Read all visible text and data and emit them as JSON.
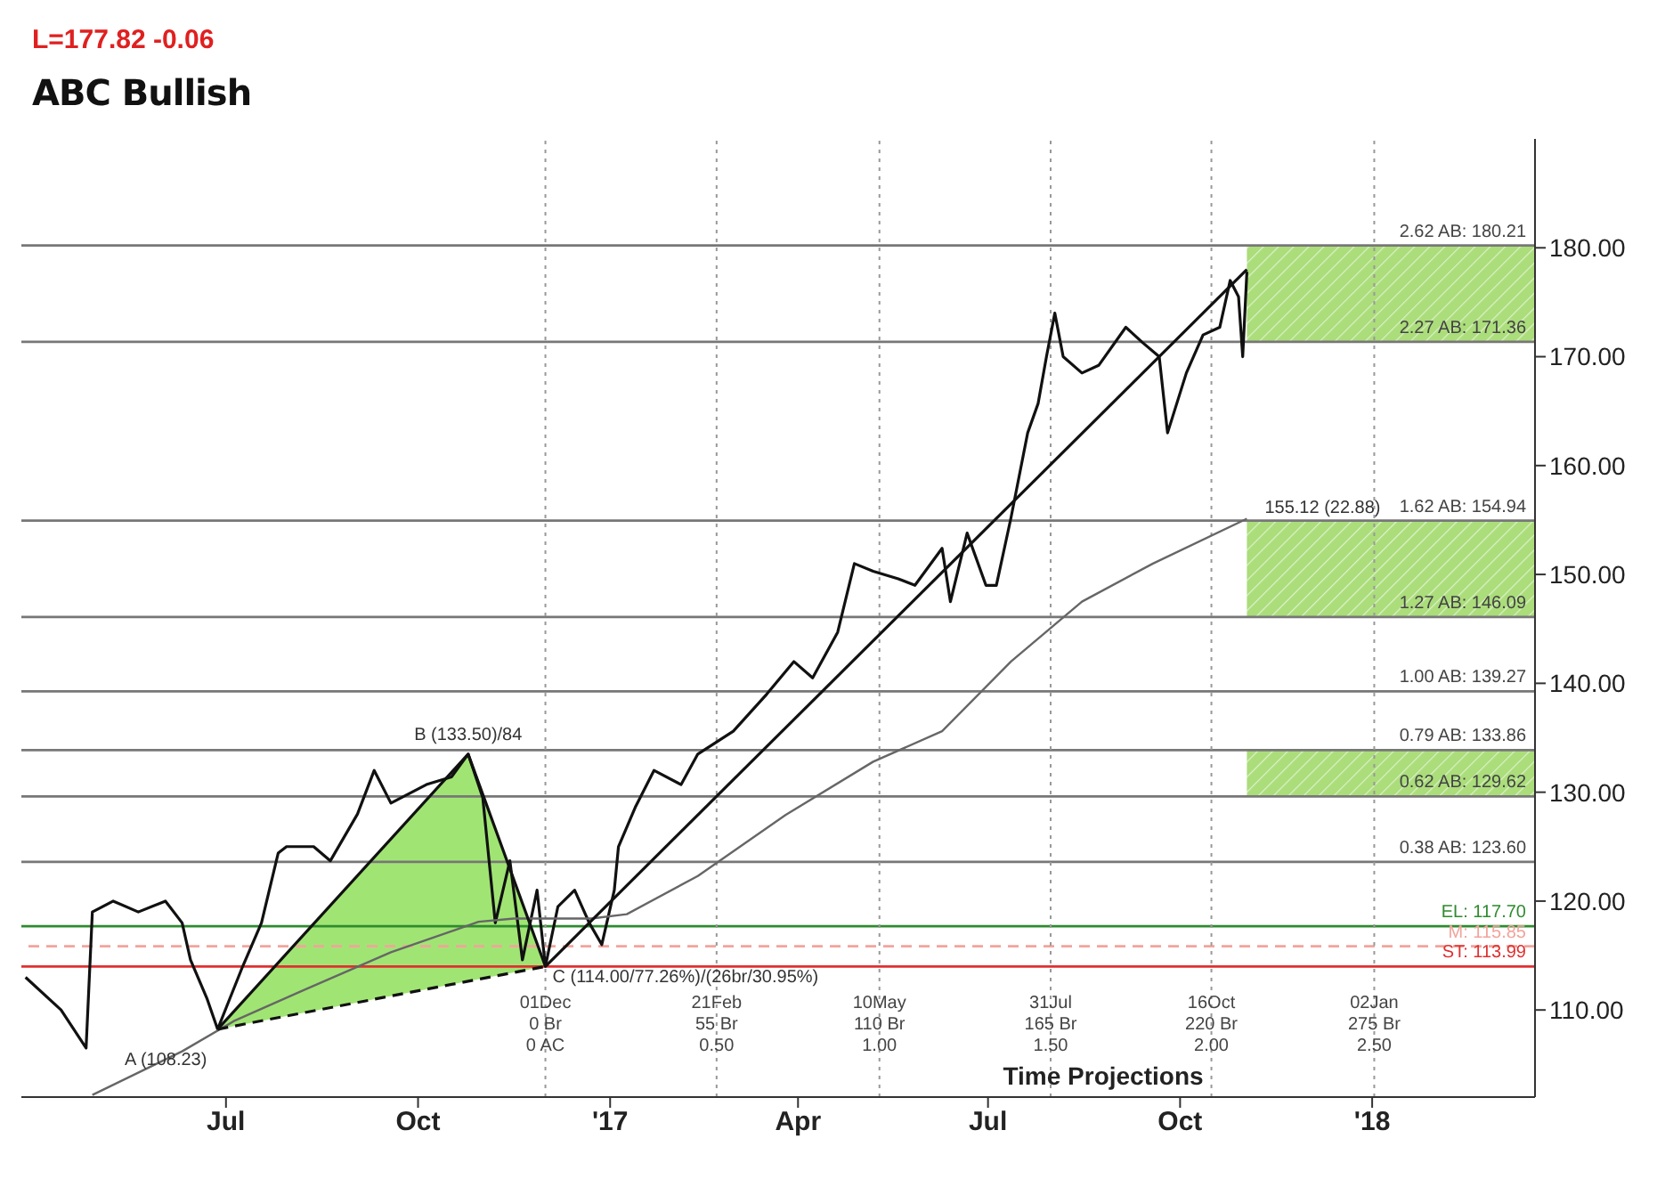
{
  "chart_data": {
    "type": "line",
    "title": "ABC Bullish",
    "subtitle": "L=177.82  -0.06",
    "xlim": [
      "2016-03-25",
      "2018-03-20"
    ],
    "xticks": [
      {
        "value": "2016-07-01",
        "label": "Jul"
      },
      {
        "value": "2016-10-01",
        "label": "Oct"
      },
      {
        "value": "2017-01-01",
        "label": "'17"
      },
      {
        "value": "2017-04-01",
        "label": "Apr"
      },
      {
        "value": "2017-07-01",
        "label": "Jul"
      },
      {
        "value": "2017-10-01",
        "label": "Oct"
      },
      {
        "value": "2018-01-01",
        "label": "'18"
      }
    ],
    "ylim": [
      102,
      190
    ],
    "yticks": [
      {
        "value": 110,
        "label": "110.00"
      },
      {
        "value": 120,
        "label": "120.00"
      },
      {
        "value": 130,
        "label": "130.00"
      },
      {
        "value": 140,
        "label": "140.00"
      },
      {
        "value": 150,
        "label": "150.00"
      },
      {
        "value": 160,
        "label": "160.00"
      },
      {
        "value": 170,
        "label": "170.00"
      },
      {
        "value": 180,
        "label": "180.00"
      }
    ],
    "grid": false,
    "series": [
      {
        "color": "#111111",
        "x": [
          "2016-03-27",
          "2016-04-13",
          "2016-04-25",
          "2016-04-28",
          "2016-05-08",
          "2016-05-20",
          "2016-06-02",
          "2016-06-10",
          "2016-06-14",
          "2016-06-22",
          "2016-06-27",
          "2016-07-09",
          "2016-07-18",
          "2016-07-26",
          "2016-07-30",
          "2016-08-12",
          "2016-08-20",
          "2016-09-02",
          "2016-09-10",
          "2016-09-18",
          "2016-10-05",
          "2016-10-17",
          "2016-10-25",
          "2016-11-01",
          "2016-11-07",
          "2016-11-14",
          "2016-11-20",
          "2016-11-27",
          "2016-12-01",
          "2016-12-07",
          "2016-12-15",
          "2016-12-22",
          "2016-12-28",
          "2017-01-03",
          "2017-01-05",
          "2017-01-13",
          "2017-01-22",
          "2017-02-04",
          "2017-02-12",
          "2017-03-01",
          "2017-03-17",
          "2017-03-30",
          "2017-04-08",
          "2017-04-20",
          "2017-04-28",
          "2017-05-07",
          "2017-05-19",
          "2017-05-27",
          "2017-06-09",
          "2017-06-13",
          "2017-06-21",
          "2017-06-30",
          "2017-07-05",
          "2017-07-12",
          "2017-07-20",
          "2017-07-25",
          "2017-07-29",
          "2017-08-02",
          "2017-08-06",
          "2017-08-15",
          "2017-08-23",
          "2017-09-05",
          "2017-09-13",
          "2017-09-21",
          "2017-09-25",
          "2017-10-04",
          "2017-10-12",
          "2017-10-20",
          "2017-10-25",
          "2017-10-29",
          "2017-10-31",
          "2017-11-02"
        ],
        "values": [
          113,
          110,
          106.5,
          119,
          120,
          119,
          120,
          118,
          114.6,
          111,
          108.23,
          114,
          118,
          124.4,
          125,
          125,
          123.7,
          128,
          132,
          129,
          130.7,
          131.4,
          133.5,
          129.5,
          118,
          123.7,
          114.6,
          121,
          114,
          119.5,
          121,
          118,
          116,
          121,
          125,
          128.6,
          132,
          130.7,
          133.5,
          135.6,
          139,
          142,
          140.5,
          144.7,
          151,
          150.3,
          149.6,
          149,
          152.4,
          147.5,
          153.8,
          149,
          149,
          155.2,
          163,
          165.7,
          170,
          174,
          170,
          168.5,
          169.2,
          172.7,
          171.3,
          170,
          163,
          168.5,
          172,
          172.7,
          177,
          175.5,
          170,
          177.8
        ]
      },
      {
        "color": "#666666",
        "x": [
          "2016-04-28",
          "2016-06-10",
          "2016-07-05",
          "2016-08-07",
          "2016-09-18",
          "2016-10-30",
          "2016-11-16",
          "2016-12-23",
          "2017-01-09",
          "2017-02-12",
          "2017-03-26",
          "2017-05-07",
          "2017-06-09",
          "2017-07-12",
          "2017-08-15",
          "2017-09-18",
          "2017-11-02"
        ],
        "values": [
          102.2,
          106.2,
          109,
          111.8,
          115.3,
          118.1,
          118.4,
          118.4,
          118.8,
          122.3,
          127.9,
          132.8,
          135.6,
          142,
          147.5,
          151,
          155.12
        ]
      },
      {
        "color": "#111111",
        "x": [
          "2016-12-01",
          "2017-11-02"
        ],
        "values": [
          114,
          178
        ]
      },
      {
        "color": "#111111",
        "x": [
          "2016-06-27",
          "2016-10-25",
          "2016-12-01"
        ],
        "values": [
          108.23,
          133.5,
          114
        ]
      },
      {
        "color": "#111111",
        "line_style": "dashed",
        "x": [
          "2016-06-27",
          "2016-12-01"
        ],
        "values": [
          108.23,
          114
        ]
      }
    ],
    "ref_lines": [
      {
        "axis": "y",
        "value": 180.21,
        "label": "2.62 AB: 180.21",
        "color": "#777777"
      },
      {
        "axis": "y",
        "value": 171.36,
        "label": "2.27 AB: 171.36",
        "color": "#777777"
      },
      {
        "axis": "y",
        "value": 154.94,
        "label": "1.62 AB: 154.94",
        "color": "#777777"
      },
      {
        "axis": "y",
        "value": 146.09,
        "label": "1.27 AB: 146.09",
        "color": "#777777"
      },
      {
        "axis": "y",
        "value": 139.27,
        "label": "1.00 AB: 139.27",
        "color": "#777777"
      },
      {
        "axis": "y",
        "value": 133.86,
        "label": "0.79 AB: 133.86",
        "color": "#777777"
      },
      {
        "axis": "y",
        "value": 129.62,
        "label": "0.62 AB: 129.62",
        "color": "#777777"
      },
      {
        "axis": "y",
        "value": 123.6,
        "label": "0.38 AB: 123.60",
        "color": "#777777"
      },
      {
        "axis": "y",
        "value": 117.7,
        "label": "EL: 117.70",
        "color": "#2e8b2e"
      },
      {
        "axis": "y",
        "value": 115.85,
        "label": "M: 115.85",
        "color": "#f2a49c",
        "line_style": "dashed"
      },
      {
        "axis": "y",
        "value": 113.99,
        "label": "ST: 113.99",
        "color": "#e03030"
      },
      {
        "axis": "x",
        "value": "2016-12-01",
        "label": "01Dec\n0 Br\n0 AC",
        "color": "#999999",
        "line_style": "dotted"
      },
      {
        "axis": "x",
        "value": "2017-02-21",
        "label": "21Feb\n55 Br\n0.50",
        "color": "#999999",
        "line_style": "dotted"
      },
      {
        "axis": "x",
        "value": "2017-05-10",
        "label": "10May\n110 Br\n1.00",
        "color": "#999999",
        "line_style": "dotted"
      },
      {
        "axis": "x",
        "value": "2017-07-31",
        "label": "31Jul\n165 Br\n1.50",
        "color": "#999999",
        "line_style": "dotted"
      },
      {
        "axis": "x",
        "value": "2017-10-16",
        "label": "16Oct\n220 Br\n2.00",
        "color": "#999999",
        "line_style": "dotted"
      },
      {
        "axis": "x",
        "value": "2018-01-02",
        "label": "02Jan\n275 Br\n2.50",
        "color": "#999999",
        "line_style": "dotted"
      }
    ],
    "bands": [
      {
        "axis": "y",
        "from": 171.36,
        "to": 180.21,
        "color": "#8fd14f"
      },
      {
        "axis": "y",
        "from": 146.09,
        "to": 154.94,
        "color": "#8fd14f"
      },
      {
        "axis": "y",
        "from": 129.62,
        "to": 133.86,
        "color": "#8fd14f"
      }
    ],
    "annotations": [
      "Time Projections",
      {
        "text": "A (108.23)",
        "x": "2016-06-27",
        "y": 108.23
      },
      {
        "text": "B (133.50)/84",
        "x": "2016-10-25",
        "y": 133.5
      },
      {
        "text": "C (114.00/77.26%)/(26br/30.95%)",
        "x": "2016-12-01",
        "y": 114
      },
      {
        "text": "155.12 (22.88)",
        "x": "2017-11-02",
        "y": 155.12
      }
    ]
  }
}
